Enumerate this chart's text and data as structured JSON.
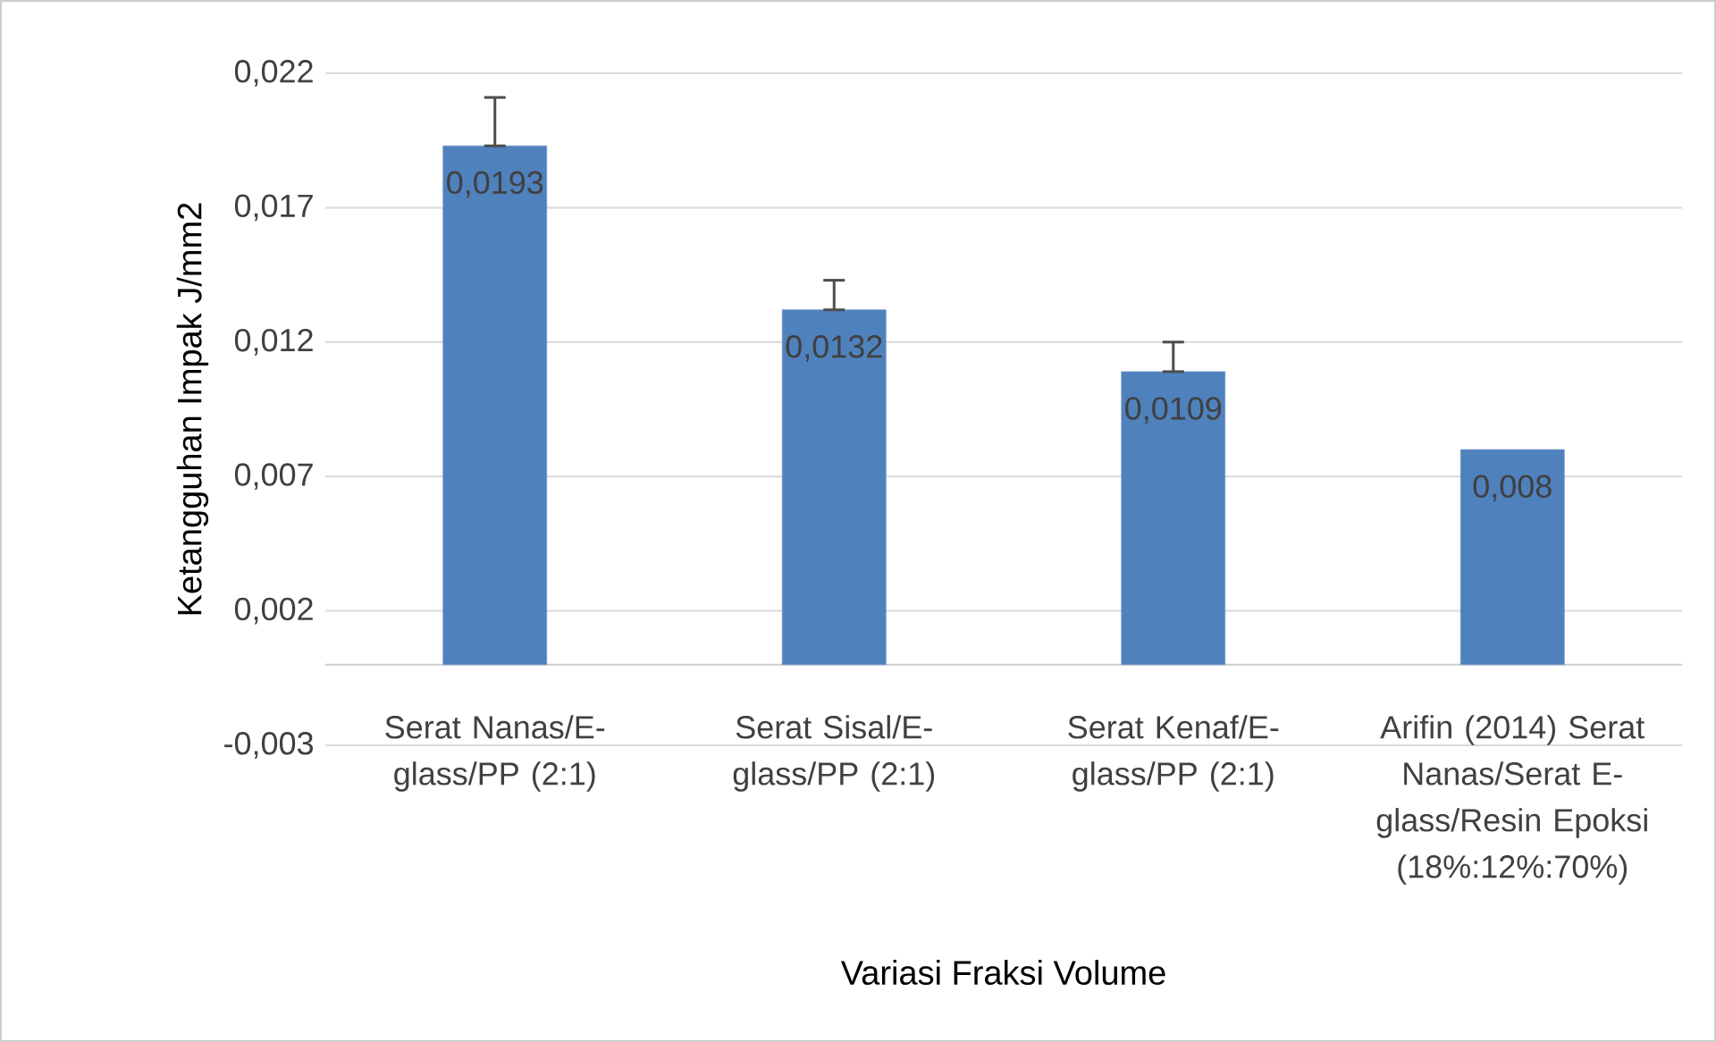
{
  "chart_data": {
    "type": "bar",
    "xlabel": "Variasi Fraksi Volume",
    "ylabel": "Ketangguhan Impak J/mm2",
    "categories": [
      "Serat Nanas/E-glass/PP (2:1)",
      "Serat Sisal/E-glass/PP (2:1)",
      "Serat Kenaf/E-glass/PP (2:1)",
      "Arifin (2014) Serat Nanas/Serat E-glass/Resin Epoksi (18%:12%:70%)"
    ],
    "values": [
      0.0193,
      0.0132,
      0.0109,
      0.008
    ],
    "value_labels": [
      "0,0193",
      "0,0132",
      "0,0109",
      "0,008"
    ],
    "errors": [
      [
        0.0193,
        0.0211
      ],
      [
        0.0132,
        0.0143
      ],
      [
        0.0109,
        0.012
      ],
      null
    ],
    "color": "#4f81bd",
    "ylim": [
      -0.003,
      0.022
    ],
    "yticks": [
      {
        "value": -0.003,
        "label": "-0,003"
      },
      {
        "value": 0.002,
        "label": "0,002"
      },
      {
        "value": 0.007,
        "label": "0,007"
      },
      {
        "value": 0.012,
        "label": "0,012"
      },
      {
        "value": 0.017,
        "label": "0,017"
      },
      {
        "value": 0.022,
        "label": "0,022"
      }
    ],
    "grid": "y",
    "legend": false
  }
}
